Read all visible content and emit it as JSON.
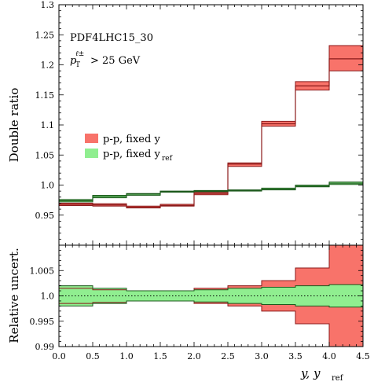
{
  "chart_data": [
    {
      "type": "step",
      "panel": "top",
      "ylabel": "Double ratio",
      "ylim": [
        0.9,
        1.3
      ],
      "yticks": [
        "0.95",
        "1.0",
        "1.05",
        "1.1",
        "1.15",
        "1.2",
        "1.25",
        "1.3"
      ],
      "annotations": [
        "PDF4LHC15_30",
        "p",
        "T",
        "ℓ±",
        "> 25 GeV"
      ],
      "legend_position": "center-left",
      "x_edges": [
        0.0,
        0.5,
        1.0,
        1.5,
        2.0,
        2.5,
        3.0,
        3.5,
        4.0,
        4.5
      ],
      "series": [
        {
          "name": "p-p, fixed y",
          "legend_main": "p-p, fixed y",
          "color": "#f8736a",
          "edge_color": "#8b1a1a",
          "center": [
            0.968,
            0.967,
            0.963,
            0.966,
            0.986,
            1.035,
            1.102,
            1.165,
            1.21
          ],
          "low": [
            0.966,
            0.965,
            0.962,
            0.965,
            0.984,
            1.031,
            1.098,
            1.158,
            1.19
          ],
          "high": [
            0.97,
            0.969,
            0.965,
            0.968,
            0.988,
            1.037,
            1.106,
            1.172,
            1.232
          ]
        },
        {
          "name": "p-p, fixed yref",
          "legend_main": "p-p, fixed y",
          "legend_sub": "ref",
          "color": "#90ee90",
          "edge_color": "#1d5a1d",
          "center": [
            0.974,
            0.981,
            0.985,
            0.989,
            0.99,
            0.991,
            0.993,
            0.998,
            1.003
          ],
          "low": [
            0.972,
            0.979,
            0.983,
            0.988,
            0.989,
            0.99,
            0.992,
            0.997,
            1.001
          ],
          "high": [
            0.976,
            0.983,
            0.986,
            0.99,
            0.991,
            0.992,
            0.995,
            1.0,
            1.005
          ]
        }
      ]
    },
    {
      "type": "step",
      "panel": "bottom",
      "ylabel": "Relative uncert.",
      "xlabel_main": "y, y",
      "xlabel_sub": "ref",
      "ylim": [
        0.99,
        1.01
      ],
      "yticks": [
        "0.99",
        "0.995",
        "1.0",
        "1.005"
      ],
      "xticks": [
        "0.0",
        "0.5",
        "1.0",
        "1.5",
        "2.0",
        "2.5",
        "3.0",
        "3.5",
        "4.0",
        "4.5"
      ],
      "reference_line": 1.0,
      "x_edges": [
        0.0,
        0.5,
        1.0,
        1.5,
        2.0,
        2.5,
        3.0,
        3.5,
        4.0,
        4.5
      ],
      "series": [
        {
          "name": "p-p, fixed y",
          "color": "#f8736a",
          "edge_color": "#8b1a1a",
          "low": [
            0.9985,
            0.9987,
            0.999,
            0.999,
            0.9985,
            0.998,
            0.997,
            0.9945,
            0.989
          ],
          "high": [
            1.0015,
            1.0012,
            1.001,
            1.001,
            1.0015,
            1.002,
            1.003,
            1.0055,
            1.012
          ]
        },
        {
          "name": "p-p, fixed yref",
          "color": "#90ee90",
          "edge_color": "#1d5a1d",
          "low": [
            0.998,
            0.9985,
            0.999,
            0.999,
            0.9988,
            0.9985,
            0.9983,
            0.998,
            0.9978
          ],
          "high": [
            1.002,
            1.0015,
            1.001,
            1.001,
            1.0012,
            1.0015,
            1.0017,
            1.002,
            1.0022
          ]
        }
      ]
    }
  ]
}
